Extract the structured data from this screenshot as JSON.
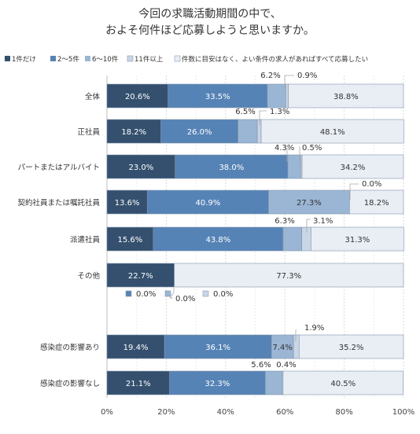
{
  "chart_data": {
    "type": "bar",
    "stacked": true,
    "orientation": "horizontal",
    "title": "今回の求職活動期間の中で、\nおよそ何件ほど応募しようと思いますか。",
    "title_lines": [
      "今回の求職活動期間の中で、",
      "およそ何件ほど応募しようと思いますか。"
    ],
    "xlim": [
      0,
      100
    ],
    "x_ticks": [
      "0%",
      "20%",
      "40%",
      "60%",
      "80%",
      "100%"
    ],
    "grid": true,
    "legend_position": "top",
    "categories": [
      "全体",
      "正社員",
      "パートまたはアルバイト",
      "契約社員または嘱託社員",
      "派遣社員",
      "その他",
      "感染症の影響あり",
      "感染症の影響なし"
    ],
    "series": [
      {
        "name": "1件だけ",
        "color": "#34506e",
        "values": [
          20.6,
          18.2,
          23.0,
          13.6,
          15.6,
          22.7,
          19.4,
          21.1
        ]
      },
      {
        "name": "2～5件",
        "color": "#5683b6",
        "values": [
          33.5,
          26.0,
          38.0,
          40.9,
          43.8,
          0.0,
          36.1,
          32.3
        ]
      },
      {
        "name": "6～10件",
        "color": "#9bb6d4",
        "values": [
          6.2,
          6.5,
          4.3,
          27.3,
          6.3,
          0.0,
          7.4,
          5.6
        ]
      },
      {
        "name": "11件以上",
        "color": "#c9d6e6",
        "values": [
          0.9,
          1.3,
          0.5,
          0.0,
          3.1,
          0.0,
          1.9,
          0.4
        ]
      },
      {
        "name": "件数に目安はなく、よい条件の求人があればすべて応募したい",
        "color": "#e9eef5",
        "values": [
          38.8,
          48.1,
          34.2,
          18.2,
          31.3,
          77.3,
          35.2,
          40.5
        ]
      }
    ],
    "value_labels": [
      [
        "20.6%",
        "33.5%",
        "6.2%",
        "0.9%",
        "38.8%"
      ],
      [
        "18.2%",
        "26.0%",
        "6.5%",
        "1.3%",
        "48.1%"
      ],
      [
        "23.0%",
        "38.0%",
        "4.3%",
        "0.5%",
        "34.2%"
      ],
      [
        "13.6%",
        "40.9%",
        "27.3%",
        "0.0%",
        "18.2%"
      ],
      [
        "15.6%",
        "43.8%",
        "6.3%",
        "3.1%",
        "31.3%"
      ],
      [
        "22.7%",
        "0.0%",
        "0.0%",
        "0.0%",
        "77.3%"
      ],
      [
        "19.4%",
        "36.1%",
        "7.4%",
        "1.9%",
        "35.2%"
      ],
      [
        "21.1%",
        "32.3%",
        "5.6%",
        "0.4%",
        "40.5%"
      ]
    ]
  }
}
